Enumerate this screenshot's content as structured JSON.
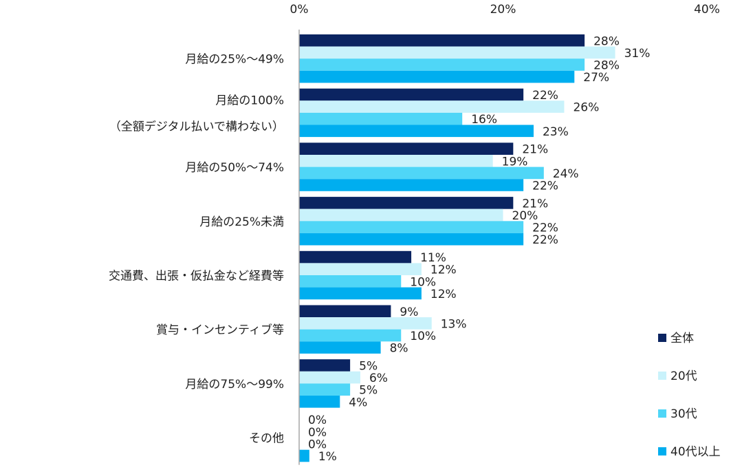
{
  "chart_data": {
    "type": "bar",
    "orientation": "horizontal",
    "title": "",
    "xlabel": "",
    "ylabel": "",
    "xlim": [
      0,
      40
    ],
    "x_ticks": [
      "0%",
      "20%",
      "40%"
    ],
    "x_tick_values": [
      0,
      20,
      40
    ],
    "value_suffix": "%",
    "grid": false,
    "legend_position": "right",
    "categories": [
      [
        "月給の25%～49%"
      ],
      [
        "月給の100%",
        "（全額デジタル払いで構わない）"
      ],
      [
        "月給の50%～74%"
      ],
      [
        "月給の25%未満"
      ],
      [
        "交通費、出張・仮払金など経費等"
      ],
      [
        "賞与・インセンティブ等"
      ],
      [
        "月給の75%～99%"
      ],
      [
        "その他"
      ]
    ],
    "series": [
      {
        "name": "全体",
        "color": "#0b2461",
        "values": [
          28,
          22,
          21,
          21,
          11,
          9,
          5,
          0
        ]
      },
      {
        "name": "20代",
        "color": "#c9f2fb",
        "values": [
          31,
          26,
          19,
          20,
          12,
          13,
          6,
          0
        ]
      },
      {
        "name": "30代",
        "color": "#4fd6f7",
        "values": [
          28,
          16,
          24,
          22,
          10,
          10,
          5,
          0
        ]
      },
      {
        "name": "40代以上",
        "color": "#00aeef",
        "values": [
          27,
          23,
          22,
          22,
          12,
          8,
          4,
          1
        ]
      }
    ]
  }
}
